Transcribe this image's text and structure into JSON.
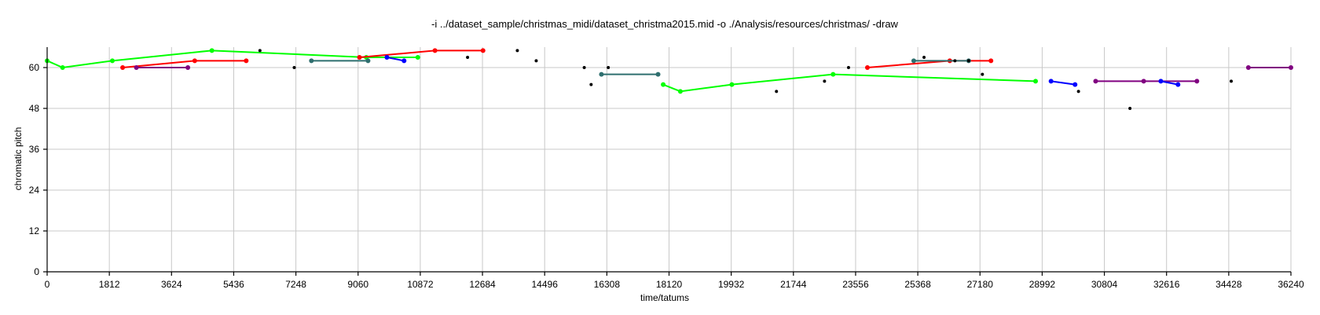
{
  "chart_data": {
    "type": "line",
    "title": "-i ../dataset_sample/christmas_midi/dataset_christma2015.mid -o ./Analysis/resources/christmas/ -draw",
    "xlabel": "time/tatums",
    "ylabel": "chromatic pitch",
    "xlim": [
      0,
      36240
    ],
    "ylim": [
      0,
      66
    ],
    "xticks": [
      0,
      1812,
      3624,
      5436,
      7248,
      9060,
      10872,
      12684,
      14496,
      16308,
      18120,
      19932,
      21744,
      23556,
      25368,
      27180,
      28992,
      30804,
      32616,
      34428,
      36240
    ],
    "yticks": [
      0,
      12,
      24,
      36,
      48,
      60
    ],
    "grid": true,
    "series": [
      {
        "color": "#00ff00",
        "x": [
          0,
          450,
          1900,
          4800,
          9300,
          10800
        ],
        "y": [
          62,
          60,
          62,
          65,
          63,
          63
        ]
      },
      {
        "color": "#00ff00",
        "x": [
          17950,
          18450,
          19950,
          22900,
          28800
        ],
        "y": [
          55,
          53,
          55,
          58,
          56
        ]
      },
      {
        "color": "#ff0000",
        "x": [
          2200,
          4300,
          5800
        ],
        "y": [
          60,
          62,
          62
        ]
      },
      {
        "color": "#ff0000",
        "x": [
          9100,
          11300,
          12700
        ],
        "y": [
          63,
          65,
          65
        ]
      },
      {
        "color": "#ff0000",
        "x": [
          23900,
          26300,
          27500
        ],
        "y": [
          60,
          62,
          62
        ]
      },
      {
        "color": "#800080",
        "x": [
          2600,
          4100
        ],
        "y": [
          60,
          60
        ]
      },
      {
        "color": "#800080",
        "x": [
          30550,
          31950,
          33500
        ],
        "y": [
          56,
          56,
          56
        ]
      },
      {
        "color": "#800080",
        "x": [
          35000,
          36240
        ],
        "y": [
          60,
          60
        ]
      },
      {
        "color": "#2f6f6f",
        "x": [
          7700,
          9350
        ],
        "y": [
          62,
          62
        ]
      },
      {
        "color": "#2f6f6f",
        "x": [
          16150,
          17800
        ],
        "y": [
          58,
          58
        ]
      },
      {
        "color": "#2f6f6f",
        "x": [
          25250,
          26850
        ],
        "y": [
          62,
          62
        ]
      },
      {
        "color": "#0000ff",
        "x": [
          9900,
          10400
        ],
        "y": [
          63,
          62
        ]
      },
      {
        "color": "#0000ff",
        "x": [
          29250,
          29950
        ],
        "y": [
          56,
          55
        ]
      },
      {
        "color": "#0000ff",
        "x": [
          32450,
          32950
        ],
        "y": [
          56,
          55
        ]
      }
    ],
    "points": {
      "color": "#000000",
      "x": [
        6200,
        7200,
        12250,
        13700,
        14250,
        15650,
        15850,
        16350,
        21250,
        22650,
        23350,
        25550,
        26450,
        26850,
        27250,
        30050,
        31550,
        34500
      ],
      "y": [
        65,
        60,
        63,
        65,
        62,
        60,
        55,
        60,
        53,
        56,
        60,
        63,
        62,
        62,
        58,
        53,
        48,
        56
      ]
    }
  }
}
